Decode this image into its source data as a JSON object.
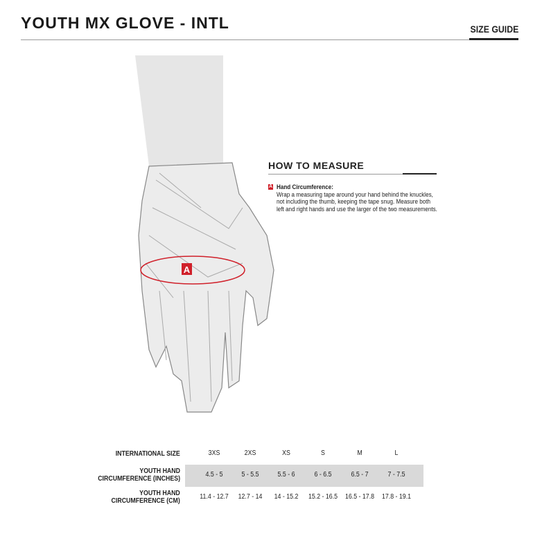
{
  "header": {
    "title": "YOUTH  MX GLOVE - INTL",
    "size_guide": "SIZE GUIDE"
  },
  "measure": {
    "heading": "HOW TO MEASURE",
    "marker": "A",
    "item_title": "Hand Circumference:",
    "lines": [
      "Wrap a measuring tape around your hand behind the knuckles,",
      "not including the thumb, keeping the tape snug. Measure both",
      "left and right hands and use the larger of the two measurements."
    ]
  },
  "colors": {
    "accent": "#d0202a",
    "band": "#d9d9d9"
  },
  "table": {
    "rows": [
      {
        "label": [
          "INTERNATIONAL SIZE"
        ],
        "values": [
          "3XS",
          "2XS",
          "XS",
          "S",
          "M",
          "L"
        ]
      },
      {
        "label": [
          "YOUTH HAND",
          "CIRCUMFERENCE (INCHES)"
        ],
        "values": [
          "4.5 - 5",
          "5 - 5.5",
          "5.5 - 6",
          "6 - 6.5",
          "6.5 - 7",
          "7 - 7.5"
        ]
      },
      {
        "label": [
          "YOUTH HAND",
          "CIRCUMFERENCE (CM)"
        ],
        "values": [
          "11.4 - 12.7",
          "12.7 - 14",
          "14 - 15.2",
          "15.2 - 16.5",
          "16.5 - 17.8",
          "17.8 - 19.1"
        ]
      }
    ]
  }
}
